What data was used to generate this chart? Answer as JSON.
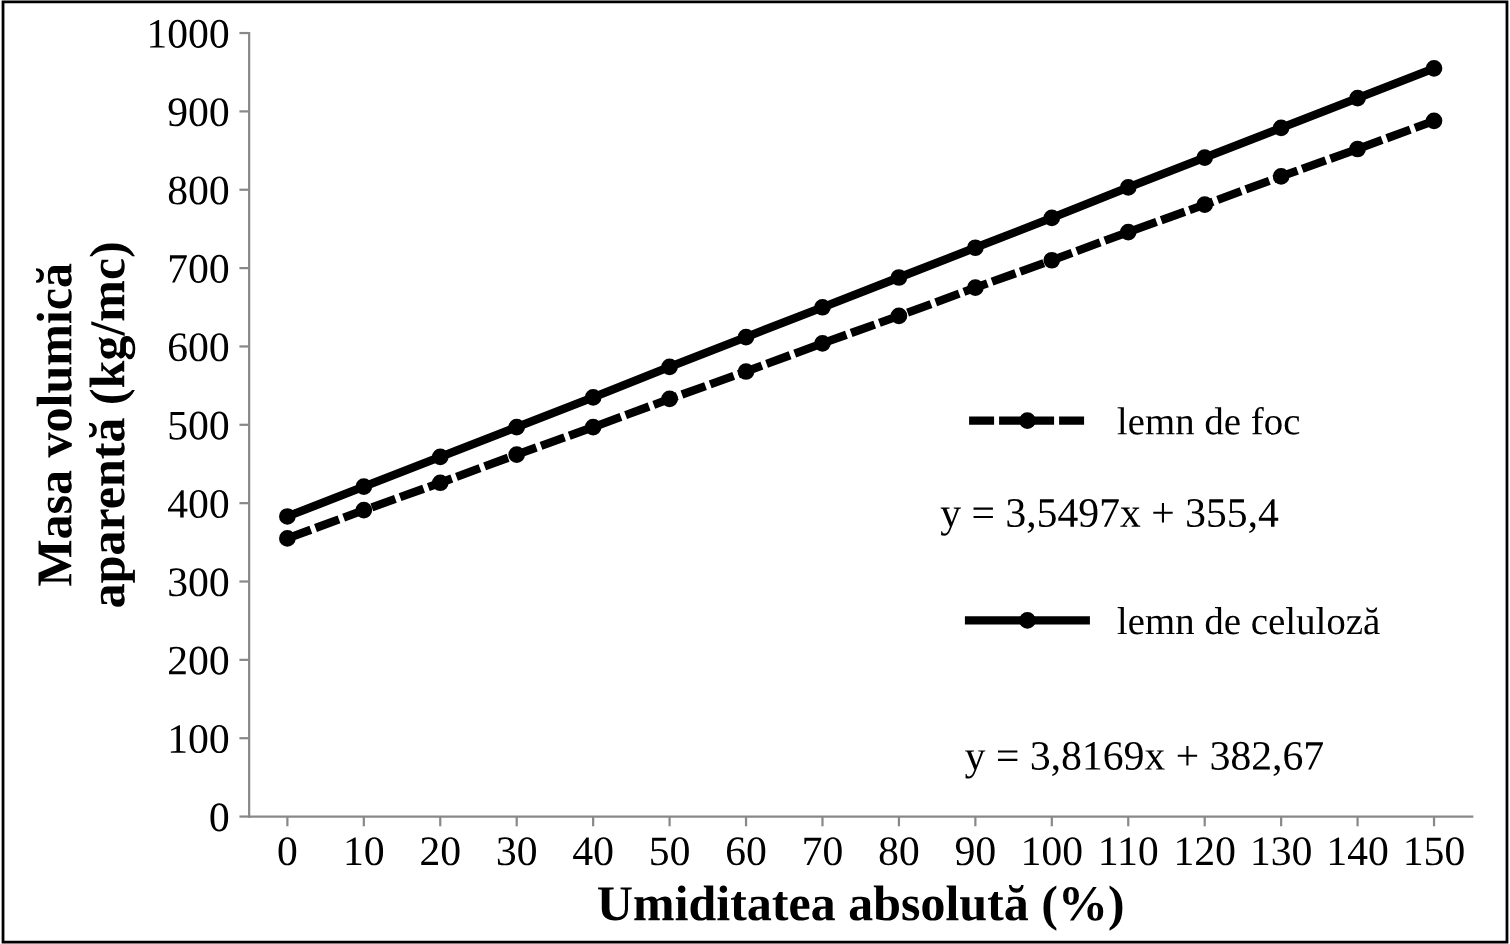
{
  "chart_data": {
    "type": "line",
    "xlabel": "Umiditatea absolută (%)",
    "ylabel": "Masa volumică\naparentă (kg/mc)",
    "categories": [
      "0",
      "10",
      "20",
      "30",
      "40",
      "50",
      "60",
      "70",
      "80",
      "90",
      "100",
      "110",
      "120",
      "130",
      "140",
      "150"
    ],
    "ylim": [
      0,
      1000
    ],
    "yticks": [
      0,
      100,
      200,
      300,
      400,
      500,
      600,
      700,
      800,
      900,
      1000
    ],
    "grid": false,
    "legend": "right",
    "marker": "circle",
    "series": [
      {
        "name": "lemn de foc",
        "color": "#000000",
        "line_style": "dashed",
        "values": [
          355,
          391,
          426,
          462,
          497,
          533,
          568,
          604,
          639,
          675,
          710,
          746,
          781,
          817,
          852,
          888
        ]
      },
      {
        "name": "lemn de celuloză",
        "color": "#000000",
        "line_style": "solid",
        "values": [
          383,
          421,
          459,
          497,
          535,
          574,
          612,
          650,
          688,
          726,
          764,
          803,
          841,
          879,
          917,
          955
        ]
      }
    ],
    "annotations": [
      "y = 3,5497x + 355,4",
      "y = 3,8169x + 382,67"
    ]
  }
}
